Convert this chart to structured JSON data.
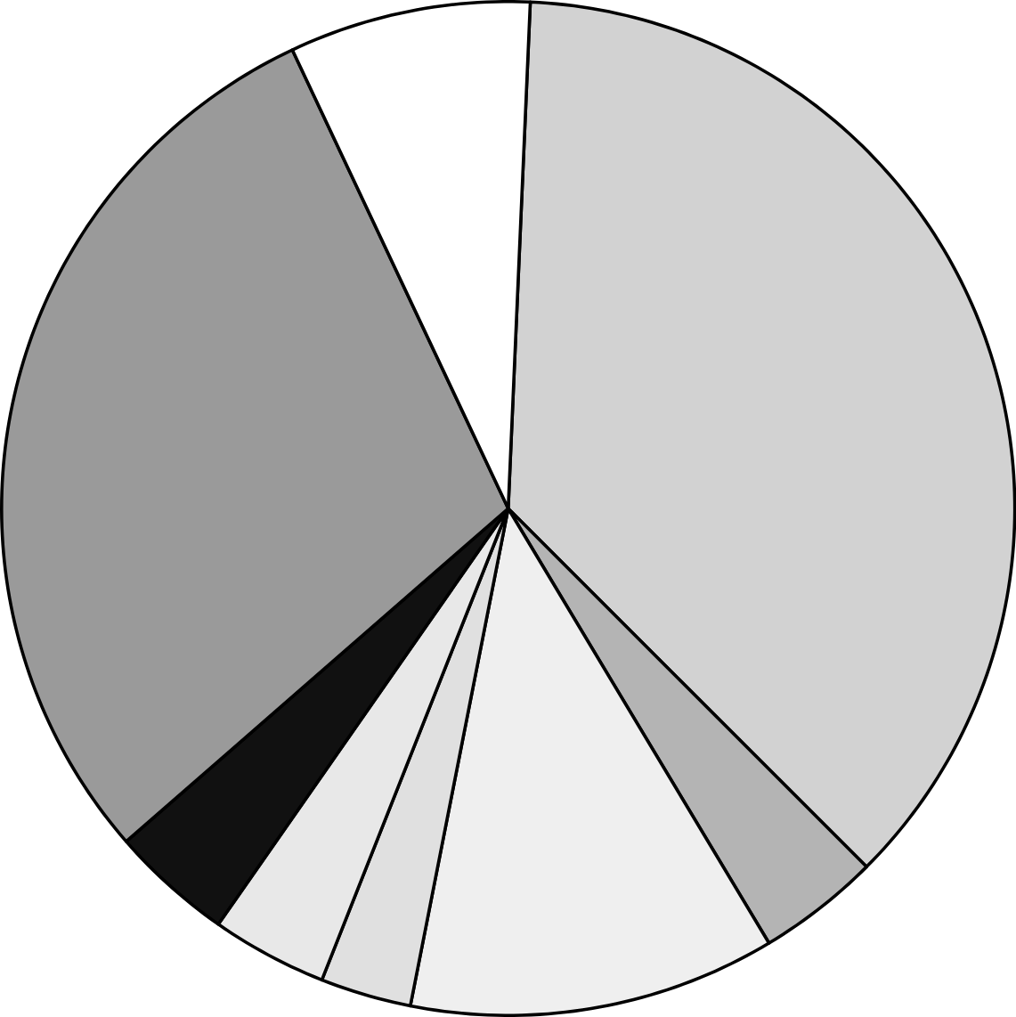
{
  "chart_data": {
    "type": "pie",
    "categories": [
      null,
      null,
      null,
      null,
      null,
      null,
      null,
      null
    ],
    "values": [
      36.8,
      3.9,
      11.7,
      2.9,
      3.7,
      3.9,
      29.4,
      7.7
    ],
    "colors": [
      "#d2d2d2",
      "#b4b4b4",
      "#efefef",
      "#e0e0e0",
      "#e8e8e8",
      "#111111",
      "#9a9a9a",
      "#ffffff"
    ]
  }
}
